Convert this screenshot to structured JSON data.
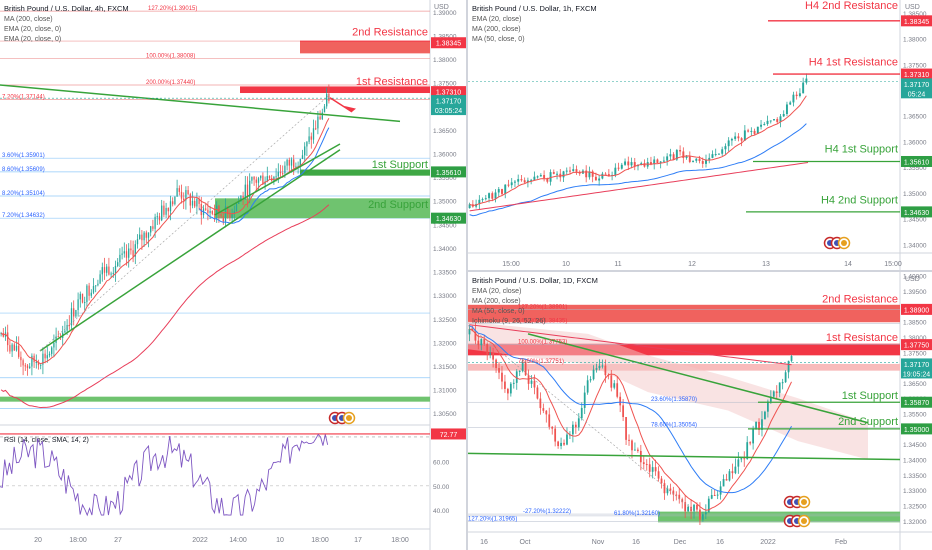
{
  "colors": {
    "up": "#26a69a",
    "down": "#ef5350",
    "res": "#f23645",
    "sup": "#4caf50",
    "green": "#38a33a",
    "tag_res": "#f23645",
    "tag_sup": "#2e9e44",
    "ema": "#ef5350",
    "ma200": "#e83e5a",
    "ma50": "#2e7df6",
    "rsi": "#7e57c2"
  },
  "panels": {
    "h4": {
      "title": "British Pound / U.S. Dollar, 4h, FXCM",
      "legend": [
        "MA (200, close)",
        "EMA (20, close, 0)",
        "EMA (20, close, 0)"
      ],
      "price_axis_top": "USD",
      "ticks": [
        "1.39000",
        "1.38500",
        "1.38000",
        "1.37500",
        "1.37000",
        "1.36500",
        "1.36000",
        "1.35500",
        "1.35000",
        "1.34500",
        "1.34000",
        "1.33500",
        "1.33000",
        "1.32500",
        "1.32000",
        "1.31500",
        "1.31000",
        "1.30500"
      ],
      "tags": [
        {
          "label": "1.38345",
          "kind": "res"
        },
        {
          "label": "1.37310",
          "kind": "res"
        },
        {
          "label": "1.37170",
          "label2": "03:05:24",
          "kind": "cur"
        },
        {
          "label": "1.35610",
          "kind": "sup"
        },
        {
          "label": "1.34630",
          "kind": "sup"
        }
      ],
      "levels": [
        {
          "label": "2nd Resistance",
          "kind": "res"
        },
        {
          "label": "1st Resistance",
          "kind": "res"
        },
        {
          "label": "1st Support",
          "kind": "sup"
        },
        {
          "label": "2nd Support",
          "kind": "sup"
        }
      ],
      "fibs": [
        "127.20%(1.39015)",
        "100.00%(1.38008)",
        "200.00%(1.37440)",
        "3.60%(1.35901)",
        "8.60%(1.35609)",
        "8.20%(1.35104)",
        "7.20%(1.34632)",
        "7.20%(1.37144)"
      ],
      "xlabels": [
        "20",
        "18:00",
        "27",
        "2022",
        "14:00",
        "10",
        "18:00",
        "17",
        "18:00"
      ],
      "rsi": {
        "title": "RSI (14, close, SMA, 14, 2)",
        "tag": "72.77",
        "ticks": [
          "60.00",
          "50.00",
          "40.00"
        ]
      }
    },
    "h1": {
      "title": "British Pound / U.S. Dollar, 1h, FXCM",
      "legend": [
        "EMA (20, close)",
        "MA (200, close)",
        "MA (50, close, 0)"
      ],
      "price_axis_top": "USD",
      "ticks": [
        "1.38500",
        "1.38000",
        "1.37500",
        "1.37000",
        "1.36500",
        "1.36000",
        "1.35500",
        "1.35000",
        "1.34500",
        "1.34000"
      ],
      "tags": [
        {
          "label": "1.38345",
          "kind": "res"
        },
        {
          "label": "1.37310",
          "kind": "res"
        },
        {
          "label": "1.37170",
          "label2": "05:24",
          "kind": "cur"
        },
        {
          "label": "1.35610",
          "kind": "sup"
        },
        {
          "label": "1.34630",
          "kind": "sup"
        }
      ],
      "levels": [
        {
          "label": "H4 2nd Resistance",
          "kind": "res"
        },
        {
          "label": "H4 1st Resistance",
          "kind": "res"
        },
        {
          "label": "H4 1st Support",
          "kind": "sup"
        },
        {
          "label": "H4 2nd Support",
          "kind": "sup"
        }
      ],
      "xlabels": [
        "15:00",
        "10",
        "11",
        "12",
        "13",
        "14",
        "15:00"
      ]
    },
    "d1": {
      "title": "British Pound / U.S. Dollar, 1D, FXCM",
      "legend": [
        "EMA (20, close)",
        "MA (200, close)",
        "MA (50, close, 0)",
        "Ichimoku (9, 26, 52, 26)"
      ],
      "price_axis_top": "USD",
      "ticks": [
        "1.40000",
        "1.39500",
        "1.39000",
        "1.38500",
        "1.38000",
        "1.37500",
        "1.37000",
        "1.36500",
        "1.36000",
        "1.35500",
        "1.35000",
        "1.34500",
        "1.34000",
        "1.33500",
        "1.33000",
        "1.32500",
        "1.32000"
      ],
      "tags": [
        {
          "label": "1.38900",
          "kind": "res"
        },
        {
          "label": "1.37750",
          "kind": "res"
        },
        {
          "label": "1.37170",
          "label2": "19:05:24",
          "kind": "cur"
        },
        {
          "label": "1.35870",
          "kind": "sup"
        },
        {
          "label": "1.35000",
          "kind": "sup"
        }
      ],
      "levels": [
        {
          "label": "2nd Resistance",
          "kind": "res"
        },
        {
          "label": "1st Resistance",
          "kind": "res"
        },
        {
          "label": "1st Support",
          "kind": "sup"
        },
        {
          "label": "2nd Support",
          "kind": "sup"
        }
      ],
      "fibs": [
        "127.20%(1.38901)",
        "161.80%(1.38435)",
        "100.00%(1.37753)",
        "78.60%(1.37751)",
        "23.60%(1.35870)",
        "78.60%(1.35054)",
        "-27.20%(1.32222)",
        "61.80%(1.32160)",
        "127.20%(1.31965)"
      ],
      "xlabels": [
        "16",
        "Oct",
        "Nov",
        "16",
        "Dec",
        "16",
        "2022",
        "Feb"
      ]
    }
  },
  "chart_data": [
    {
      "type": "candlestick",
      "title": "British Pound / U.S. Dollar, 4h, FXCM",
      "ylim": [
        1.3025,
        1.3925
      ],
      "levels": {
        "2nd Resistance": 1.38345,
        "1st Resistance": 1.3731,
        "1st Support": 1.3561,
        "2nd Support": 1.3463
      },
      "last": 1.3717,
      "rsi_last": 72.77
    },
    {
      "type": "candlestick",
      "title": "British Pound / U.S. Dollar, 1h, FXCM",
      "ylim": [
        1.3385,
        1.3875
      ],
      "levels": {
        "H4 2nd Resistance": 1.38345,
        "H4 1st Resistance": 1.3731,
        "H4 1st Support": 1.3561,
        "H4 2nd Support": 1.3463
      },
      "last": 1.3717
    },
    {
      "type": "candlestick",
      "title": "British Pound / U.S. Dollar, 1D, FXCM",
      "ylim": [
        1.317,
        1.4012
      ],
      "levels": {
        "2nd Resistance": 1.389,
        "1st Resistance": 1.3775,
        "1st Support": 1.3587,
        "2nd Support": 1.35
      },
      "last": 1.3717
    }
  ]
}
